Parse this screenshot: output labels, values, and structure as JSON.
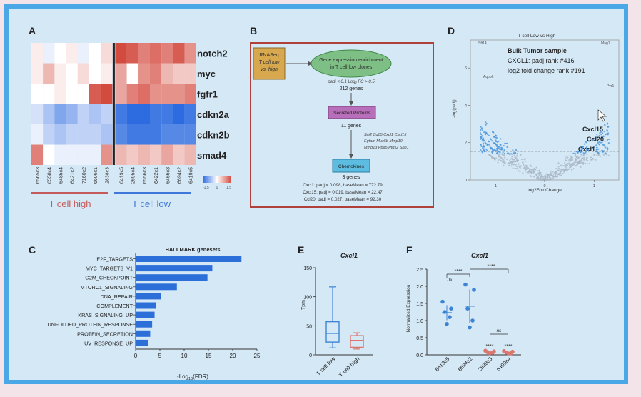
{
  "panels": {
    "A": {
      "letter": "A",
      "genes": [
        "notch2",
        "myc",
        "fgfr1",
        "cdkn2a",
        "cdkn2b",
        "smad4"
      ],
      "samples_high": [
        "6565c3",
        "6558c4",
        "6485c4",
        "6421c2",
        "7160c2",
        "6606c1",
        "2838c3"
      ],
      "samples_low": [
        "6419c5",
        "2695c4",
        "6556c3",
        "6422c1",
        "6466c3",
        "6694c2",
        "6419c5"
      ],
      "group_high_label": "T cell high",
      "group_low_label": "T cell low",
      "scale_ticks": [
        "-1.5",
        "0",
        "1.5"
      ],
      "colors": {
        "high_group": "#c65a5a",
        "low_group": "#3f78d8",
        "up": "#d9776f",
        "down": "#4a82e0"
      },
      "heatmap_values": [
        [
          0.1,
          -0.1,
          0.0,
          0.1,
          -0.1,
          0.0,
          0.2,
          1.0,
          0.9,
          0.7,
          0.8,
          0.7,
          0.9,
          0.6
        ],
        [
          0.1,
          0.4,
          0.1,
          0.0,
          0.2,
          0.0,
          0.1,
          0.5,
          0.0,
          0.6,
          0.7,
          0.4,
          0.3,
          0.3
        ],
        [
          0.0,
          0.0,
          0.1,
          0.0,
          0.0,
          0.9,
          1.0,
          0.5,
          0.7,
          0.8,
          0.6,
          0.6,
          0.6,
          0.7
        ],
        [
          -0.2,
          -0.4,
          -0.6,
          -0.5,
          -0.3,
          -0.4,
          -0.3,
          -0.9,
          -1.0,
          -1.0,
          -0.9,
          -0.9,
          -1.0,
          -0.9
        ],
        [
          -0.1,
          -0.3,
          -0.4,
          -0.3,
          -0.3,
          -0.3,
          -0.4,
          -0.8,
          -0.9,
          -0.9,
          -0.9,
          -0.8,
          -0.8,
          -0.8
        ],
        [
          0.7,
          0.0,
          -0.1,
          -0.1,
          -0.1,
          -0.1,
          0.6,
          0.4,
          0.3,
          0.4,
          0.3,
          0.5,
          0.3,
          0.4
        ]
      ]
    },
    "B": {
      "letter": "B",
      "rnaseq_box": [
        "RNASeq",
        "T cell low",
        "vs. high"
      ],
      "enrich_box": [
        "Gene expression enrichment",
        "in T cell low clones"
      ],
      "filter_text": "padj < 0.1 Log₂ FC > 0.5",
      "genes_count_1": "212 genes",
      "secreted_box": "Secreted Proteins",
      "genes_count_2": "11 genes",
      "secreted_genes": [
        "Sai2  Cd05  Cxcl1  Cxcl15",
        "Egfam  Muc5b  Mmp10",
        "Mmp13  Ppa5  Ptgs2  Spp1"
      ],
      "chemokines_box": "Chemokines",
      "genes_count_3": "3 genes",
      "stats": [
        "Cxcl1: padj = 0.098, baseMean = 772.79",
        "Cxcl15: padj = 0.019, baseMean = 22.47",
        "Ccl20: padj = 0.027, baseMean = 92.30"
      ],
      "colors": {
        "rnaseq": "#d7a84e",
        "enrich": "#7dbf84",
        "secreted": "#b76fb9",
        "chemokines": "#5dbde0",
        "frame": "#b0403a"
      }
    },
    "C": {
      "letter": "C"
    },
    "D": {
      "letter": "D",
      "title": "T cell Low vs High",
      "box_title": "Bulk Tumor sample",
      "box_line1": "CXCL1: padj rank #416",
      "box_line2": "log2 fold change rank #191",
      "gene_labels": [
        "Cxcl15",
        "Ccl20",
        "Cxcl1"
      ],
      "corner_labels": [
        "Sft14",
        "Mag1",
        "Pvr1",
        "Aqbb6"
      ]
    },
    "E": {
      "letter": "E"
    },
    "F": {
      "letter": "F",
      "sig_labels": [
        "****",
        "****",
        "ns",
        "ns",
        "****",
        "****"
      ]
    }
  },
  "chart_data": [
    {
      "type": "bar",
      "title": "HALLMARK genesets",
      "xlabel": "-Log10(FDR)",
      "categories": [
        "E2F_TARGETS",
        "MYC_TARGETS_V1",
        "G2M_CHECKPOINT",
        "MTORC1_SIGNALING",
        "DNA_REPAIR",
        "COMPLEMENT",
        "KRAS_SIGNALING_UP",
        "UNFOLDED_PROTEIN_RESPONSE",
        "PROTEIN_SECRETION",
        "UV_RESPONSE_UP"
      ],
      "values": [
        21.8,
        15.8,
        14.8,
        8.5,
        5.2,
        4.2,
        3.9,
        3.4,
        3.0,
        2.6
      ],
      "xlim": [
        0,
        25
      ],
      "xticks": [
        "0",
        "5",
        "10",
        "15",
        "20",
        "25"
      ],
      "color": "#2d6fd8"
    },
    {
      "type": "box",
      "title": "Cxcl1",
      "ylabel": "Tpm",
      "categories": [
        "T cell low",
        "T cell high"
      ],
      "ylim": [
        0,
        150
      ],
      "yticks": [
        "0",
        "50",
        "100",
        "150"
      ],
      "boxes": [
        {
          "min": 12,
          "q1": 22,
          "median": 37,
          "q3": 57,
          "max": 117
        },
        {
          "min": 10,
          "q1": 13,
          "median": 25,
          "q3": 33,
          "max": 38
        }
      ],
      "colors": [
        "#3e84d6",
        "#d9776f"
      ]
    },
    {
      "type": "scatter",
      "title": "Cxcl1",
      "ylabel": "Normalized Expression",
      "categories": [
        "6419c5",
        "6694c2",
        "2838c3",
        "6499c4"
      ],
      "ylim": [
        0,
        2.5
      ],
      "yticks": [
        "0.0",
        "0.5",
        "1.0",
        "1.5",
        "2.0",
        "2.5"
      ],
      "points": [
        [
          1.55,
          1.35,
          1.25,
          1.1,
          0.9
        ],
        [
          2.05,
          1.9,
          1.35,
          1.0,
          0.8
        ],
        [
          0.12,
          0.1,
          0.08,
          0.06,
          0.05
        ],
        [
          0.11,
          0.09,
          0.07,
          0.05,
          0.04
        ]
      ],
      "colors": [
        "#3e84d6",
        "#3e84d6",
        "#d9776f",
        "#d9776f"
      ]
    },
    {
      "type": "scatter",
      "title": "T cell Low vs High",
      "xlabel": "log2FoldChange",
      "ylabel": "-log(padj)",
      "xlim": [
        -1.5,
        1.5
      ],
      "ylim": [
        0,
        7.5
      ],
      "xticks": [
        "-1",
        "0",
        "1"
      ],
      "yticks": [
        "0",
        "2",
        "4",
        "6"
      ]
    }
  ]
}
